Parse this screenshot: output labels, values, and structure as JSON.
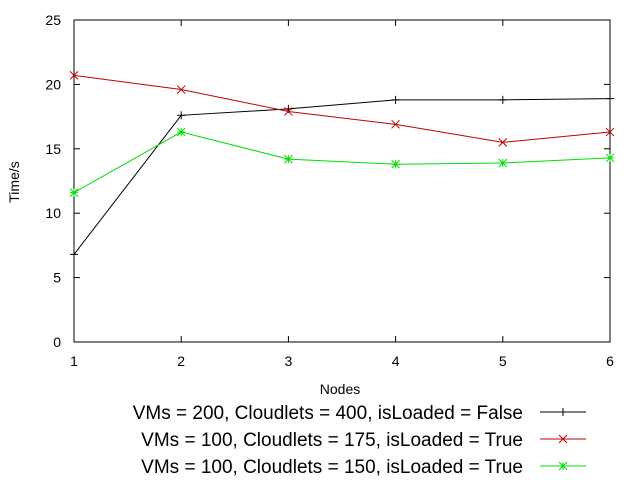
{
  "chart_data": {
    "type": "line",
    "title": "",
    "xlabel": "Nodes",
    "ylabel": "Time/s",
    "xlim": [
      1,
      6
    ],
    "ylim": [
      0,
      25
    ],
    "x_ticks": [
      1,
      2,
      3,
      4,
      5,
      6
    ],
    "y_ticks": [
      0,
      5,
      10,
      15,
      20,
      25
    ],
    "grid": false,
    "legend_position": "bottom",
    "series": [
      {
        "name": "VMs = 200, Cloudlets = 400, isLoaded = False",
        "marker": "plus",
        "color": "#000000",
        "x": [
          1,
          2,
          3,
          4,
          5,
          6
        ],
        "y": [
          6.8,
          17.6,
          18.1,
          18.8,
          18.8,
          18.9
        ]
      },
      {
        "name": "VMs = 100, Cloudlets = 175, isLoaded = True",
        "marker": "cross",
        "color": "#c00000",
        "x": [
          1,
          2,
          3,
          4,
          5,
          6
        ],
        "y": [
          20.7,
          19.6,
          17.9,
          16.9,
          15.5,
          16.3
        ]
      },
      {
        "name": "VMs = 100, Cloudlets = 150, isLoaded = True",
        "marker": "star",
        "color": "#00dd00",
        "x": [
          1,
          2,
          3,
          4,
          5,
          6
        ],
        "y": [
          11.6,
          16.3,
          14.2,
          13.8,
          13.9,
          14.3
        ]
      }
    ]
  }
}
